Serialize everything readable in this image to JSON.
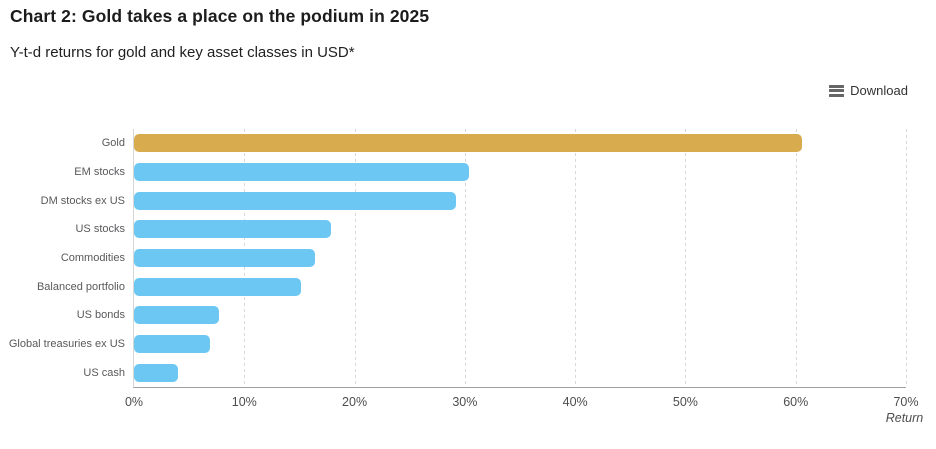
{
  "header": {
    "title": "Chart 2: Gold takes a place on the podium in 2025",
    "subtitle": "Y-t-d returns for gold and key asset classes in USD*"
  },
  "toolbar": {
    "download_label": "Download",
    "icon": "hamburger-menu-icon"
  },
  "chart_data": {
    "type": "bar",
    "orientation": "horizontal",
    "title": "Chart 2: Gold takes a place on the podium in 2025",
    "subtitle": "Y-t-d returns for gold and key asset classes in USD*",
    "categories": [
      "Gold",
      "EM stocks",
      "DM stocks ex US",
      "US stocks",
      "Commodities",
      "Balanced portfolio",
      "US bonds",
      "Global treasuries ex US",
      "US cash"
    ],
    "values": [
      60.6,
      30.4,
      29.2,
      17.9,
      16.4,
      15.1,
      7.7,
      6.9,
      4.0
    ],
    "unit": "%",
    "bar_colors": [
      "#d9ab4f",
      "#6cc7f3",
      "#6cc7f3",
      "#6cc7f3",
      "#6cc7f3",
      "#6cc7f3",
      "#6cc7f3",
      "#6cc7f3",
      "#6cc7f3"
    ],
    "xlabel": "Return",
    "x_ticks": [
      "0%",
      "10%",
      "20%",
      "30%",
      "40%",
      "50%",
      "60%",
      "70%"
    ],
    "xlim": [
      0,
      70
    ],
    "grid": "vertical-dashed",
    "legend": "none",
    "colors": {
      "gold_accent": "#d9ab4f",
      "blue_accent": "#6cc7f3",
      "gridline": "#d8d8d8",
      "axis_line": "#a0a0a0",
      "label_gray": "#58595b"
    }
  }
}
